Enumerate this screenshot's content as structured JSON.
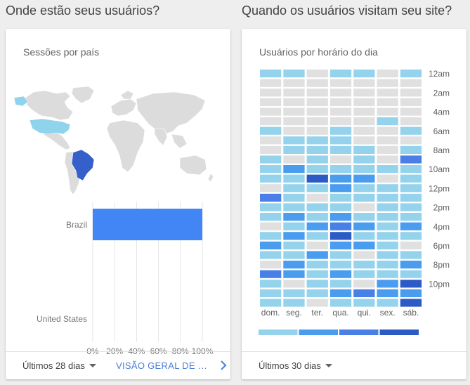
{
  "left": {
    "section_title": "Onde estão seus usuários?",
    "card_title": "Sessões por país",
    "footer_range": "Últimos 28 dias",
    "footer_link": "VISÃO GERAL DE LOCAIS",
    "map": {
      "highlight_colors": {
        "Brazil": "#3560c9",
        "United States": "#8fd3ec"
      },
      "base_color": "#dcdcdc"
    }
  },
  "right": {
    "section_title": "Quando os usuários visitam seu site?",
    "card_title": "Usuários por horário do dia",
    "footer_range": "Últimos 30 dias"
  },
  "chart_data": [
    {
      "type": "bar",
      "orientation": "horizontal",
      "categories": [
        "Brazil",
        "United States"
      ],
      "values": [
        1.0,
        0.0
      ],
      "x_ticks": [
        "0%",
        "20%",
        "40%",
        "60%",
        "80%",
        "100%"
      ],
      "xlim": [
        0,
        1
      ],
      "bar_color": "#4285f4"
    },
    {
      "type": "heatmap",
      "days": [
        "dom.",
        "seg.",
        "ter.",
        "qua.",
        "qui.",
        "sex.",
        "sáb."
      ],
      "hour_labels": [
        "12am",
        "2am",
        "4am",
        "6am",
        "8am",
        "10am",
        "12pm",
        "2pm",
        "4pm",
        "6pm",
        "8pm",
        "10pm"
      ],
      "legend_ticks": [
        "1",
        "3",
        "5",
        "7",
        "9"
      ],
      "level_colors": [
        "#e0e0e0",
        "#95d3ec",
        "#4a9cef",
        "#4a7fe8",
        "#2d5bc5"
      ],
      "rows": [
        [
          1,
          1,
          0,
          1,
          1,
          0,
          1
        ],
        [
          0,
          0,
          0,
          0,
          0,
          0,
          0
        ],
        [
          0,
          0,
          0,
          0,
          0,
          0,
          0
        ],
        [
          0,
          0,
          0,
          0,
          0,
          0,
          0
        ],
        [
          0,
          0,
          0,
          0,
          0,
          0,
          0
        ],
        [
          0,
          0,
          0,
          0,
          0,
          1,
          0
        ],
        [
          1,
          0,
          0,
          1,
          0,
          0,
          1
        ],
        [
          0,
          1,
          1,
          1,
          0,
          0,
          0
        ],
        [
          0,
          1,
          1,
          1,
          1,
          0,
          1
        ],
        [
          1,
          0,
          1,
          0,
          1,
          0,
          3
        ],
        [
          1,
          2,
          1,
          1,
          1,
          1,
          1
        ],
        [
          1,
          1,
          4,
          2,
          2,
          0,
          1
        ],
        [
          0,
          1,
          1,
          2,
          1,
          1,
          1
        ],
        [
          3,
          1,
          0,
          1,
          1,
          1,
          1
        ],
        [
          1,
          1,
          1,
          1,
          0,
          1,
          1
        ],
        [
          1,
          2,
          1,
          2,
          1,
          1,
          1
        ],
        [
          0,
          1,
          2,
          3,
          2,
          1,
          2
        ],
        [
          1,
          2,
          1,
          4,
          1,
          1,
          1
        ],
        [
          2,
          1,
          0,
          2,
          2,
          1,
          0
        ],
        [
          1,
          1,
          2,
          1,
          0,
          1,
          1
        ],
        [
          0,
          2,
          1,
          1,
          1,
          1,
          2
        ],
        [
          3,
          2,
          1,
          2,
          1,
          1,
          1
        ],
        [
          1,
          0,
          1,
          1,
          0,
          2,
          4
        ],
        [
          1,
          1,
          1,
          2,
          3,
          2,
          2
        ],
        [
          1,
          1,
          0,
          1,
          1,
          1,
          4
        ]
      ]
    }
  ]
}
